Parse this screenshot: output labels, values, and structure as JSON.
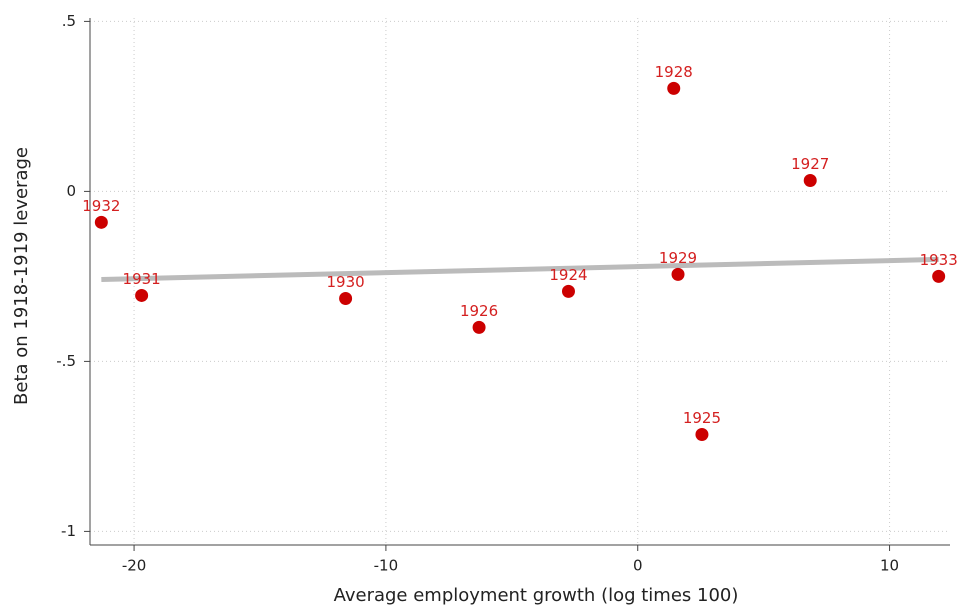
{
  "chart_data": {
    "type": "scatter",
    "x_label": "Average employment growth (log times 100)",
    "y_label": "Beta on 1918-1919 leverage",
    "xlim": [
      -21.75,
      12.4
    ],
    "ylim": [
      -1.04,
      0.51
    ],
    "xticks": [
      -20,
      -10,
      0,
      10
    ],
    "yticks": [
      {
        "value": 0.5,
        "label": ".5"
      },
      0,
      {
        "value": -0.5,
        "label": "-.5"
      },
      -1
    ],
    "grid": true,
    "series": [
      {
        "color": "#cc0000",
        "label_color": "#d42020",
        "labels": [
          "1932",
          "1931",
          "1930",
          "1926",
          "1924",
          "1928",
          "1929",
          "1927",
          "1925",
          "1933"
        ],
        "x": [
          -21.3,
          -19.7,
          -11.6,
          -6.3,
          -2.75,
          1.43,
          1.6,
          6.85,
          2.55,
          11.95
        ],
        "values": [
          -0.091,
          -0.306,
          -0.315,
          -0.4,
          -0.294,
          0.303,
          -0.244,
          0.032,
          -0.715,
          -0.25
        ]
      }
    ],
    "fit": {
      "color": "#bbbbbb",
      "x": [
        -21.3,
        11.95
      ],
      "values": [
        -0.259,
        -0.2
      ]
    }
  }
}
